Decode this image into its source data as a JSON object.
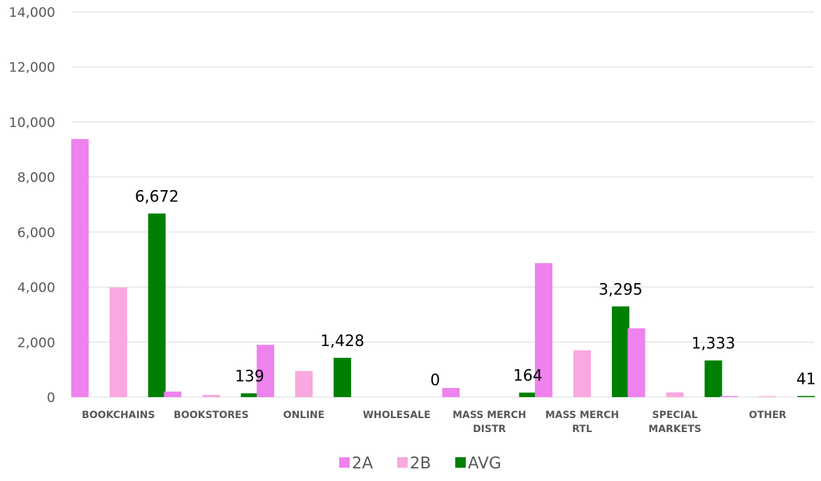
{
  "chart_data": {
    "type": "bar",
    "title": "",
    "xlabel": "",
    "ylabel": "",
    "ylim": [
      0,
      14000
    ],
    "yticks": [
      "0",
      "2,000",
      "4,000",
      "6,000",
      "8,000",
      "10,000",
      "12,000",
      "14,000"
    ],
    "ytick_values": [
      0,
      2000,
      4000,
      6000,
      8000,
      10000,
      12000,
      14000
    ],
    "grid": true,
    "legend_position": "bottom",
    "categories": [
      [
        "BOOKCHAINS"
      ],
      [
        "BOOKSTORES"
      ],
      [
        "ONLINE"
      ],
      [
        "WHOLESALE"
      ],
      [
        "MASS MERCH",
        "DISTR"
      ],
      [
        "MASS MERCH",
        "RTL"
      ],
      [
        "SPECIAL",
        "MARKETS"
      ],
      [
        "OTHER"
      ]
    ],
    "series": [
      {
        "name": "2A",
        "color": "#ee82ee",
        "values": [
          9380,
          200,
          1900,
          0,
          330,
          4870,
          2500,
          40
        ]
      },
      {
        "name": "2B",
        "color": "#f9a8e0",
        "values": [
          3980,
          80,
          950,
          0,
          0,
          1700,
          170,
          30
        ]
      },
      {
        "name": "AVG",
        "color": "#008000",
        "values": [
          6672,
          139,
          1428,
          0,
          164,
          3295,
          1333,
          41
        ],
        "data_labels": [
          "6,672",
          "139",
          "1,428",
          "0",
          "164",
          "3,295",
          "1,333",
          "41"
        ]
      }
    ]
  }
}
